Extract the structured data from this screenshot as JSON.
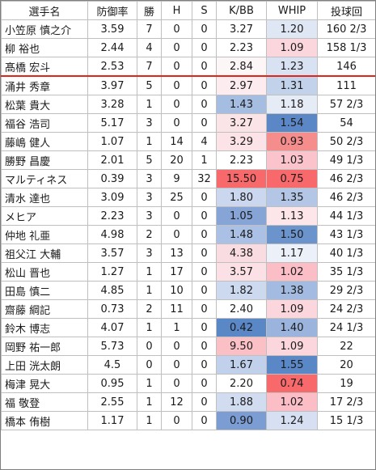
{
  "headers": [
    "選手名",
    "防御率",
    "勝",
    "H",
    "S",
    "K/BB",
    "WHIP",
    "投球回"
  ],
  "rows": [
    {
      "name": "小笠原 慎之介",
      "era": "3.59",
      "w": "7",
      "h": "0",
      "s": "0",
      "kbb": "3.27",
      "whip": "1.20",
      "ip": "160 2/3",
      "kbb_bg": "#ffffff",
      "whip_bg": "#dfe6f4"
    },
    {
      "name": "柳 裕也",
      "era": "2.44",
      "w": "4",
      "h": "0",
      "s": "0",
      "kbb": "2.23",
      "whip": "1.09",
      "ip": "158 1/3",
      "kbb_bg": "#ffffff",
      "whip_bg": "#fbd7dd"
    },
    {
      "name": "髙橋 宏斗",
      "era": "2.53",
      "w": "7",
      "h": "0",
      "s": "0",
      "kbb": "2.84",
      "whip": "1.23",
      "ip": "146",
      "kbb_bg": "#fdf6f7",
      "whip_bg": "#d9e2f2"
    },
    {
      "name": "涌井 秀章",
      "era": "3.97",
      "w": "5",
      "h": "0",
      "s": "0",
      "kbb": "2.97",
      "whip": "1.31",
      "ip": "111",
      "kbb_bg": "#fcecef",
      "whip_bg": "#c3d2eb"
    },
    {
      "name": "松葉 貴大",
      "era": "3.28",
      "w": "1",
      "h": "0",
      "s": "0",
      "kbb": "1.43",
      "whip": "1.18",
      "ip": "57 2/3",
      "kbb_bg": "#a6bde2",
      "whip_bg": "#e6ecf6"
    },
    {
      "name": "福谷 浩司",
      "era": "5.17",
      "w": "3",
      "h": "0",
      "s": "0",
      "kbb": "3.27",
      "whip": "1.54",
      "ip": "54",
      "kbb_bg": "#fbe4e8",
      "whip_bg": "#5b87c7"
    },
    {
      "name": "藤嶋 健人",
      "era": "1.07",
      "w": "1",
      "h": "14",
      "s": "4",
      "kbb": "3.29",
      "whip": "0.93",
      "ip": "50 2/3",
      "kbb_bg": "#fbe3e7",
      "whip_bg": "#f68d8d"
    },
    {
      "name": "勝野 昌慶",
      "era": "2.01",
      "w": "5",
      "h": "20",
      "s": "1",
      "kbb": "2.23",
      "whip": "1.03",
      "ip": "49 1/3",
      "kbb_bg": "#ffffff",
      "whip_bg": "#fbc3cb"
    },
    {
      "name": "マルティネス",
      "era": "0.39",
      "w": "3",
      "h": "9",
      "s": "32",
      "kbb": "15.50",
      "whip": "0.75",
      "ip": "46 2/3",
      "kbb_bg": "#f8696b",
      "whip_bg": "#f8696b"
    },
    {
      "name": "清水 達也",
      "era": "3.09",
      "w": "3",
      "h": "25",
      "s": "0",
      "kbb": "1.80",
      "whip": "1.35",
      "ip": "46 2/3",
      "kbb_bg": "#cbd7ee",
      "whip_bg": "#b3c6e6"
    },
    {
      "name": "メヒア",
      "era": "2.23",
      "w": "3",
      "h": "0",
      "s": "0",
      "kbb": "1.05",
      "whip": "1.13",
      "ip": "44 1/3",
      "kbb_bg": "#86a4d6",
      "whip_bg": "#fde6ea"
    },
    {
      "name": "仲地 礼亜",
      "era": "4.98",
      "w": "2",
      "h": "0",
      "s": "0",
      "kbb": "1.48",
      "whip": "1.50",
      "ip": "43 1/3",
      "kbb_bg": "#aac0e4",
      "whip_bg": "#6b93cc"
    },
    {
      "name": "祖父江 大輔",
      "era": "3.57",
      "w": "3",
      "h": "13",
      "s": "0",
      "kbb": "4.38",
      "whip": "1.17",
      "ip": "40 1/3",
      "kbb_bg": "#f9dce1",
      "whip_bg": "#ecf0f8"
    },
    {
      "name": "松山 晋也",
      "era": "1.27",
      "w": "1",
      "h": "17",
      "s": "0",
      "kbb": "3.57",
      "whip": "1.02",
      "ip": "35 1/3",
      "kbb_bg": "#fbe0e5",
      "whip_bg": "#fbbec6"
    },
    {
      "name": "田島 慎二",
      "era": "4.85",
      "w": "1",
      "h": "10",
      "s": "0",
      "kbb": "1.82",
      "whip": "1.38",
      "ip": "29 2/3",
      "kbb_bg": "#cdd9ef",
      "whip_bg": "#a4bbe1"
    },
    {
      "name": "齋藤 綱記",
      "era": "0.73",
      "w": "2",
      "h": "11",
      "s": "0",
      "kbb": "2.40",
      "whip": "1.09",
      "ip": "24 2/3",
      "kbb_bg": "#ffffff",
      "whip_bg": "#fbd7dd"
    },
    {
      "name": "鈴木 博志",
      "era": "4.07",
      "w": "1",
      "h": "1",
      "s": "0",
      "kbb": "0.42",
      "whip": "1.40",
      "ip": "24 1/3",
      "kbb_bg": "#5a87c6",
      "whip_bg": "#9bb4de"
    },
    {
      "name": "岡野 祐一郎",
      "era": "5.73",
      "w": "0",
      "h": "0",
      "s": "0",
      "kbb": "9.50",
      "whip": "1.09",
      "ip": "22",
      "kbb_bg": "#fbc0c6",
      "whip_bg": "#fbd7dd"
    },
    {
      "name": "上田 洸太朗",
      "era": "4.5",
      "w": "0",
      "h": "0",
      "s": "0",
      "kbb": "1.67",
      "whip": "1.55",
      "ip": "20",
      "kbb_bg": "#c1d0eb",
      "whip_bg": "#5a87c6"
    },
    {
      "name": "梅津 晃大",
      "era": "0.95",
      "w": "1",
      "h": "0",
      "s": "0",
      "kbb": "2.20",
      "whip": "0.74",
      "ip": "19",
      "kbb_bg": "#ffffff",
      "whip_bg": "#f8696b"
    },
    {
      "name": "福 敬登",
      "era": "2.55",
      "w": "1",
      "h": "12",
      "s": "0",
      "kbb": "1.88",
      "whip": "1.02",
      "ip": "17 2/3",
      "kbb_bg": "#d2dcf0",
      "whip_bg": "#fbbec6"
    },
    {
      "name": "橋本 侑樹",
      "era": "1.17",
      "w": "1",
      "h": "0",
      "s": "0",
      "kbb": "0.90",
      "whip": "1.24",
      "ip": "15 1/3",
      "kbb_bg": "#7c9dd3",
      "whip_bg": "#d7e0f2"
    }
  ],
  "separator_color": "#e0251b"
}
